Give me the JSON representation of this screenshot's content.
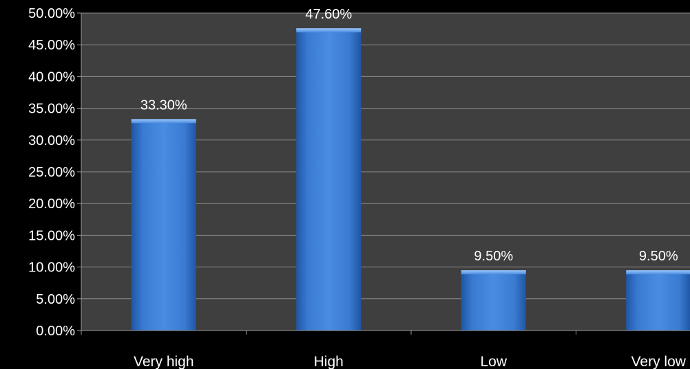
{
  "chart_data": {
    "type": "bar",
    "categories": [
      "Very high",
      "High",
      "Low",
      "Very low"
    ],
    "values": [
      33.3,
      47.6,
      9.5,
      9.5
    ],
    "data_labels": [
      "33.30%",
      "47.60%",
      "9.50%",
      "9.50%"
    ],
    "y_ticks": [
      "0.00%",
      "5.00%",
      "10.00%",
      "15.00%",
      "20.00%",
      "25.00%",
      "30.00%",
      "35.00%",
      "40.00%",
      "45.00%",
      "50.00%"
    ],
    "ylim": [
      0,
      50
    ],
    "grid": true,
    "title": "",
    "xlabel": "",
    "ylabel": "",
    "colors": {
      "page_background": "#000000",
      "plot_background": "#3f3f3f",
      "gridline": "#8c8c8c",
      "bar": "#3d7fd6",
      "text": "#ffffff"
    }
  }
}
